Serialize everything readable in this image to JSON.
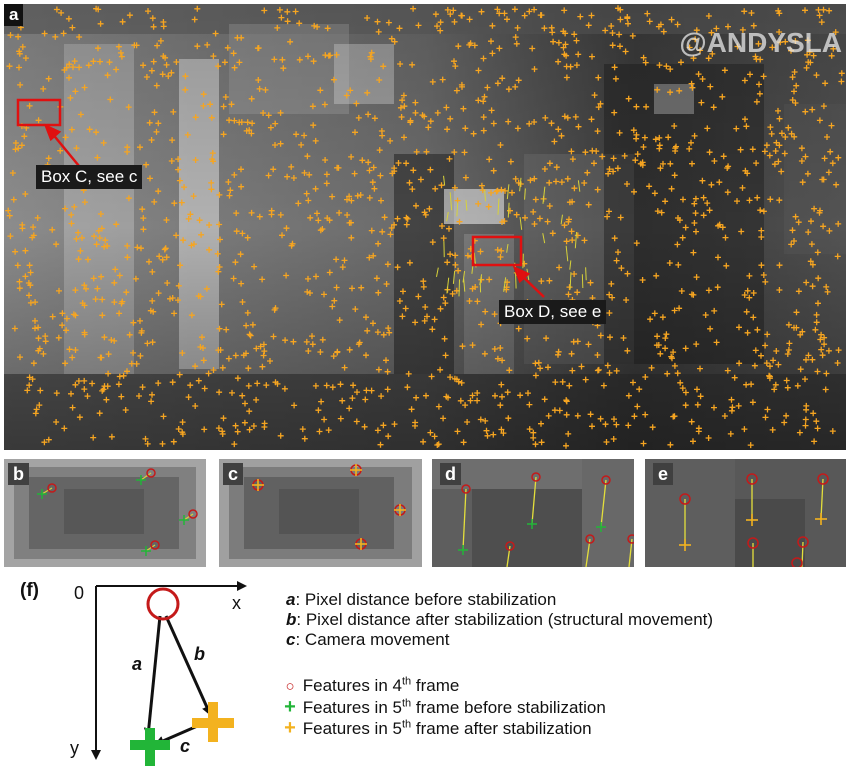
{
  "panels": {
    "a": {
      "tag": "a",
      "watermark": "@ANDYSLA"
    },
    "b": {
      "tag": "b"
    },
    "c": {
      "tag": "c"
    },
    "d": {
      "tag": "d"
    },
    "e": {
      "tag": "e"
    },
    "f": {
      "tag": "(f)"
    }
  },
  "callouts": {
    "box_c": "Box C, see c",
    "box_d": "Box D, see e"
  },
  "axes": {
    "origin": "0",
    "x": "x",
    "y": "y"
  },
  "vectors": {
    "a": "a",
    "b": "b",
    "c": "c"
  },
  "definitions": [
    {
      "key": "a",
      "text": ": Pixel distance before stabilization"
    },
    {
      "key": "b",
      "text": ": Pixel distance after stabilization (structural movement)"
    },
    {
      "key": "c",
      "text": ": Camera movement"
    }
  ],
  "legend": [
    {
      "symbol": "circle",
      "color": "#c41a1a",
      "pre": "Features in 4",
      "sup": "th",
      "post": " frame"
    },
    {
      "symbol": "plus",
      "color": "#22b538",
      "pre": "Features in 5",
      "sup": "th",
      "post": " frame before stabilization"
    },
    {
      "symbol": "plus",
      "color": "#f3b21f",
      "pre": "Features in 5",
      "sup": "th",
      "post": " frame after stabilization"
    }
  ]
}
